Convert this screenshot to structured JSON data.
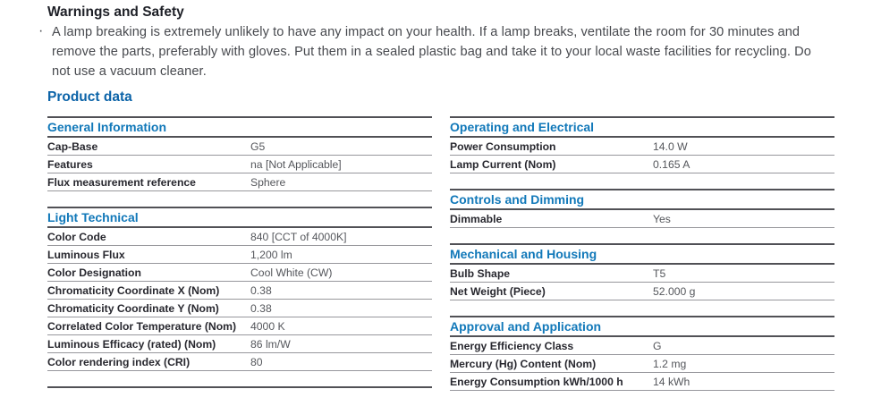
{
  "warnings": {
    "title": "Warnings and Safety",
    "bullet": "·",
    "lines": [
      "A lamp breaking is extremely unlikely to have any impact on your health. If a lamp breaks, ventilate the room for 30 minutes and",
      "remove the parts, preferably with gloves. Put them in a sealed plastic bag and take it to your local waste facilities for recycling. Do",
      "not use a vacuum cleaner."
    ]
  },
  "product_data": {
    "title": "Product data",
    "left_sections": [
      {
        "title": "General Information",
        "rows": [
          {
            "label": "Cap-Base",
            "value": "G5"
          },
          {
            "label": "Features",
            "value": "na [Not Applicable]"
          },
          {
            "label": "Flux measurement reference",
            "value": "Sphere"
          }
        ]
      },
      {
        "title": "Light Technical",
        "rows": [
          {
            "label": "Color Code",
            "value": "840 [CCT of 4000K]"
          },
          {
            "label": "Luminous Flux",
            "value": "1,200 lm"
          },
          {
            "label": "Color Designation",
            "value": "Cool White (CW)"
          },
          {
            "label": "Chromaticity Coordinate X (Nom)",
            "value": "0.38"
          },
          {
            "label": "Chromaticity Coordinate Y (Nom)",
            "value": "0.38"
          },
          {
            "label": "Correlated Color Temperature (Nom)",
            "value": "4000 K"
          },
          {
            "label": "Luminous Efficacy (rated) (Nom)",
            "value": "86 lm/W"
          },
          {
            "label": "Color rendering index (CRI)",
            "value": "80"
          }
        ]
      }
    ],
    "right_sections": [
      {
        "title": "Operating and Electrical",
        "rows": [
          {
            "label": "Power Consumption",
            "value": "14.0 W"
          },
          {
            "label": "Lamp Current (Nom)",
            "value": "0.165 A"
          }
        ]
      },
      {
        "title": "Controls and Dimming",
        "rows": [
          {
            "label": "Dimmable",
            "value": "Yes"
          }
        ]
      },
      {
        "title": "Mechanical and Housing",
        "rows": [
          {
            "label": "Bulb Shape",
            "value": "T5"
          },
          {
            "label": "Net Weight (Piece)",
            "value": "52.000 g"
          }
        ]
      },
      {
        "title": "Approval and Application",
        "rows": [
          {
            "label": "Energy Efficiency Class",
            "value": "G"
          },
          {
            "label": "Mercury (Hg) Content (Nom)",
            "value": "1.2 mg"
          },
          {
            "label": "Energy Consumption kWh/1000 h",
            "value": "14 kWh"
          }
        ]
      }
    ]
  },
  "colors": {
    "page_title_blue": "#0b63a8",
    "section_title_blue": "#1178b9",
    "heading_text": "#1d1f26",
    "body_text": "#47494e",
    "label_text": "#28282f",
    "value_text": "#55575c",
    "strong_border": "#515156",
    "row_border": "#97979c"
  }
}
